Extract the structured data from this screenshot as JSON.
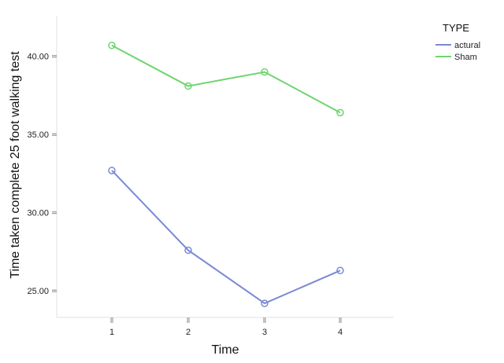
{
  "chart_data": {
    "type": "line",
    "title": "",
    "xlabel": "Time",
    "ylabel": "Time taken complete 25 foot walking test",
    "categories": [
      "1",
      "2",
      "3",
      "4"
    ],
    "y_ticks": [
      "25.00",
      "30.00",
      "35.00",
      "40.00"
    ],
    "ylim": [
      23.3,
      42.6
    ],
    "legend": {
      "title": "TYPE",
      "position": "top-right"
    },
    "series": [
      {
        "name": "actural",
        "values": [
          32.7,
          27.6,
          24.2,
          26.3
        ],
        "color": "#7b89d6"
      },
      {
        "name": "Sham",
        "values": [
          40.7,
          38.1,
          39.0,
          36.4
        ],
        "color": "#6fd46f"
      }
    ],
    "grid": false
  }
}
